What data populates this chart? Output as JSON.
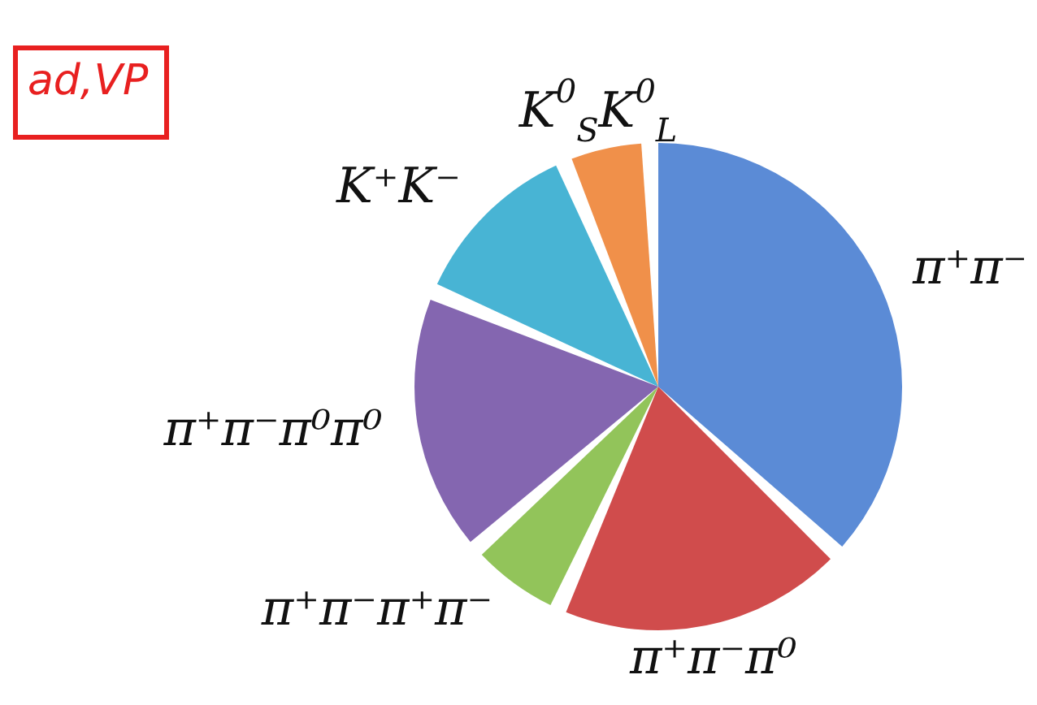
{
  "chart_data": {
    "type": "pie",
    "categories": [
      "π⁺π⁻",
      "π⁺π⁻π⁰",
      "π⁺π⁻π⁺π⁻",
      "π⁺π⁻π⁰π⁰",
      "K⁺K⁻",
      "K$^{0}$$_{S}$K$^{0}$$_{L}$"
    ],
    "values": [
      39,
      20,
      6,
      18,
      12,
      5
    ],
    "colors": [
      "#5b8bd6",
      "#d04c4c",
      "#92c45a",
      "#8466b0",
      "#48b4d4",
      "#f0904a"
    ],
    "annotations": [
      "ad,VP"
    ]
  }
}
